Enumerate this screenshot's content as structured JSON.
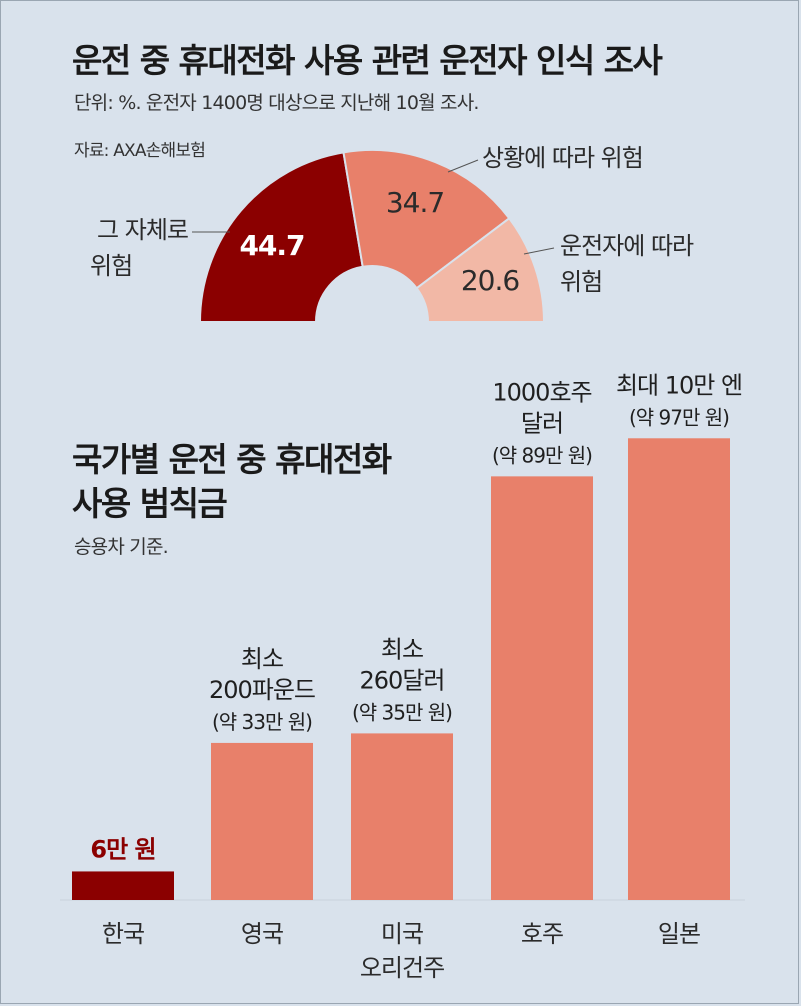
{
  "title": "운전 중 휴대전화 사용 관련 운전자 인식 조사",
  "subtitle": "단위: %. 운전자 1400명 대상으로 지난해 10월 조사.",
  "source": "자료: AXA손해보험",
  "chart_data": [
    {
      "type": "pie",
      "subtype": "semi-donut",
      "title": "운전 중 휴대전화 사용 관련 운전자 인식 조사",
      "unit": "%",
      "slices": [
        {
          "label": [
            "그 자체로",
            "위험"
          ],
          "value": 44.7,
          "value_label": "44.7",
          "color": "#8b0000"
        },
        {
          "label": [
            "상황에 따라 위험"
          ],
          "value": 34.7,
          "value_label": "34.7",
          "color": "#e8806a"
        },
        {
          "label": [
            "운전자에 따라",
            "위험"
          ],
          "value": 20.6,
          "value_label": "20.6",
          "color": "#f2b8a6"
        }
      ]
    },
    {
      "type": "bar",
      "title": [
        "국가별 운전 중 휴대전화",
        "사용 범칙금"
      ],
      "note": "승용차 기준.",
      "unit": "만 원",
      "categories": [
        [
          "한국"
        ],
        [
          "영국"
        ],
        [
          "미국",
          "오리건주"
        ],
        [
          "호주"
        ],
        [
          "일본"
        ]
      ],
      "values": [
        6,
        33,
        35,
        89,
        97
      ],
      "value_labels": [
        [
          "6만 원"
        ],
        [
          "최소",
          "200파운드",
          "(약 33만 원)"
        ],
        [
          "최소",
          "260달러",
          "(약 35만 원)"
        ],
        [
          "1000호주",
          "달러",
          "(약 89만 원)"
        ],
        [
          "최대 10만 엔",
          "(약 97만 원)"
        ]
      ],
      "colors": [
        "#8b0000",
        "#e8806a",
        "#e8806a",
        "#e8806a",
        "#e8806a"
      ],
      "highlight_label_color": "#8b0000"
    }
  ]
}
